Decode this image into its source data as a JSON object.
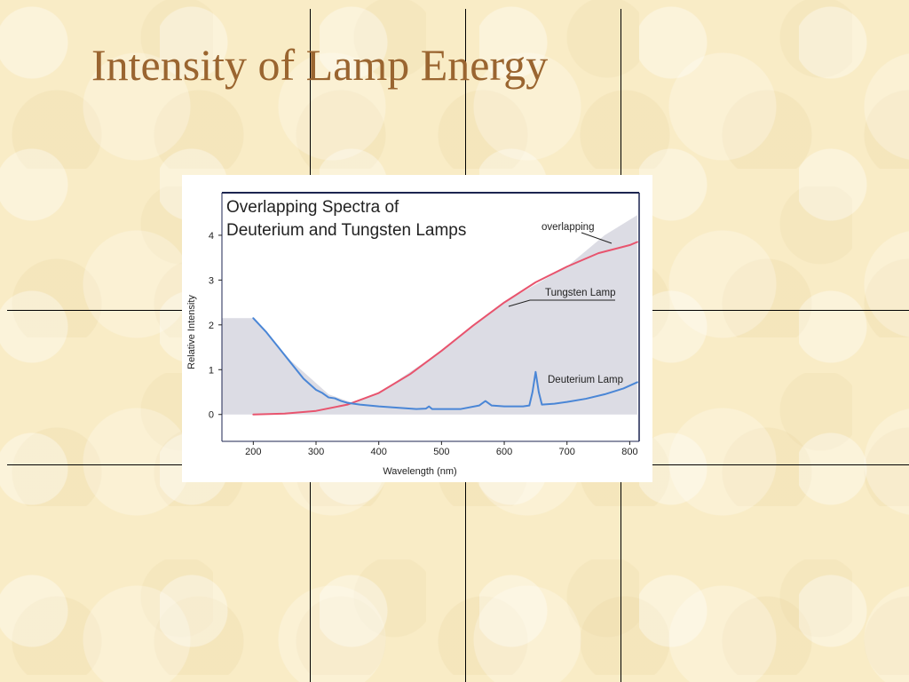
{
  "slide": {
    "title": "Intensity of Lamp Energy"
  },
  "chart_data": {
    "type": "line",
    "title": "Overlapping Spectra of\nDeuterium and Tungsten Lamps",
    "title_lines": [
      "Overlapping Spectra of",
      "Deuterium and Tungsten Lamps"
    ],
    "xlabel": "Wavelength (nm)",
    "ylabel": "Relative Intensity",
    "xlim": [
      150,
      815
    ],
    "ylim": [
      -0.6,
      4.95
    ],
    "x_ticks": [
      200,
      300,
      400,
      500,
      600,
      700,
      800
    ],
    "y_ticks": [
      0,
      1,
      2,
      3,
      4
    ],
    "grid": false,
    "colors": {
      "tungsten": "#e8546e",
      "deuterium": "#4a86d6",
      "overlap_fill": "#d6d6df"
    },
    "annotations": [
      {
        "label": "overlapping",
        "points_to": "overlapping region"
      },
      {
        "label": "Tungsten Lamp",
        "points_to": "Tungsten Lamp"
      },
      {
        "label": "Deuterium Lamp",
        "points_to": "Deuterium Lamp"
      }
    ],
    "series": [
      {
        "name": "Tungsten Lamp",
        "x": [
          200,
          250,
          300,
          350,
          400,
          450,
          500,
          550,
          600,
          650,
          700,
          750,
          800,
          812
        ],
        "y": [
          0.0,
          0.02,
          0.08,
          0.22,
          0.48,
          0.9,
          1.42,
          1.98,
          2.5,
          2.95,
          3.3,
          3.6,
          3.78,
          3.85
        ]
      },
      {
        "name": "Deuterium Lamp",
        "x": [
          200,
          220,
          240,
          260,
          280,
          300,
          310,
          320,
          330,
          340,
          350,
          370,
          400,
          430,
          460,
          475,
          480,
          485,
          500,
          530,
          560,
          570,
          580,
          600,
          630,
          640,
          645,
          650,
          655,
          660,
          680,
          700,
          730,
          760,
          790,
          812
        ],
        "y": [
          2.15,
          1.85,
          1.5,
          1.15,
          0.8,
          0.55,
          0.48,
          0.38,
          0.36,
          0.3,
          0.26,
          0.22,
          0.18,
          0.15,
          0.12,
          0.13,
          0.18,
          0.12,
          0.12,
          0.12,
          0.2,
          0.3,
          0.2,
          0.18,
          0.18,
          0.2,
          0.5,
          0.95,
          0.5,
          0.22,
          0.24,
          0.28,
          0.35,
          0.45,
          0.58,
          0.72
        ]
      }
    ],
    "overlap_region": {
      "x": [
        150,
        200,
        260,
        320,
        360,
        400,
        500,
        600,
        700,
        760,
        812
      ],
      "y_top": [
        2.15,
        2.15,
        1.2,
        0.45,
        0.25,
        0.48,
        1.42,
        2.5,
        3.3,
        4.0,
        4.45
      ]
    }
  }
}
